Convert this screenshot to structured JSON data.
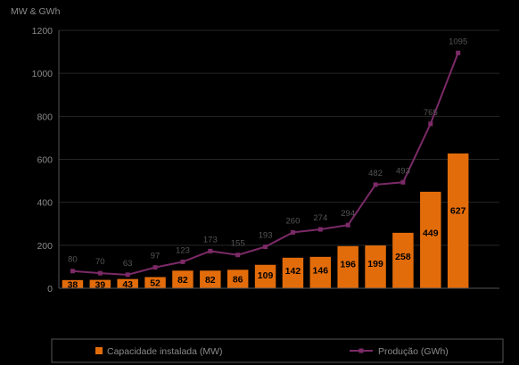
{
  "chart_data": {
    "type": "bar",
    "ylabel": "MW & GWh",
    "ylim": [
      0,
      1200
    ],
    "yticks": [
      0,
      200,
      400,
      600,
      800,
      1000,
      1200
    ],
    "categories": [
      "",
      "",
      "",
      "",
      "",
      "",
      "",
      "",
      "",
      "",
      "",
      "",
      "",
      "",
      "",
      ""
    ],
    "series": [
      {
        "name": "Capacidade instalada (MW)",
        "kind": "bar",
        "color": "#e36c0a",
        "values": [
          38,
          39,
          43,
          52,
          82,
          82,
          86,
          109,
          142,
          146,
          196,
          199,
          258,
          449,
          627,
          null
        ]
      },
      {
        "name": "Produção (GWh)",
        "kind": "line",
        "color": "#7b2a67",
        "values": [
          80,
          70,
          63,
          97,
          123,
          173,
          155,
          193,
          260,
          274,
          294,
          482,
          493,
          765,
          1095,
          null
        ]
      }
    ],
    "grid": true,
    "legend": "bottom"
  }
}
